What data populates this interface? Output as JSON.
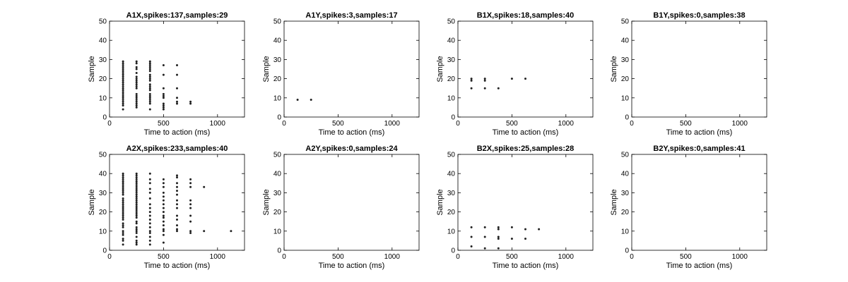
{
  "chart_data": [
    {
      "type": "scatter",
      "title": "A1X,spikes:137,samples:29",
      "xlabel": "Time to action (ms)",
      "ylabel": "Sample",
      "xlim": [
        0,
        1250
      ],
      "ylim": [
        0,
        50
      ],
      "xticks": [
        "0",
        "500",
        "1000"
      ],
      "yticks": [
        "0",
        "10",
        "20",
        "30",
        "40",
        "50"
      ],
      "columns": [
        {
          "x": 125,
          "y": [
            4,
            6,
            7,
            8,
            9,
            10,
            11,
            12,
            13,
            14,
            15,
            16,
            17,
            18,
            19,
            20,
            21,
            22,
            23,
            24,
            25,
            26,
            27,
            28,
            29
          ]
        },
        {
          "x": 250,
          "y": [
            5,
            6,
            7,
            8,
            9,
            10,
            11,
            12,
            15,
            16,
            17,
            18,
            19,
            20,
            21,
            23,
            25,
            26,
            28,
            29
          ]
        },
        {
          "x": 375,
          "y": [
            4,
            7,
            8,
            9,
            10,
            11,
            12,
            14,
            15,
            16,
            17,
            19,
            20,
            21,
            22,
            24,
            25,
            26,
            27,
            28,
            29
          ]
        },
        {
          "x": 500,
          "y": [
            4,
            5,
            6,
            7,
            10,
            11,
            12,
            15,
            22,
            27
          ]
        },
        {
          "x": 625,
          "y": [
            7,
            8,
            10,
            15,
            22,
            27
          ]
        },
        {
          "x": 750,
          "y": [
            7,
            8
          ]
        }
      ]
    },
    {
      "type": "scatter",
      "title": "A1Y,spikes:3,samples:17",
      "xlabel": "Time to action (ms)",
      "ylabel": "Sample",
      "xlim": [
        0,
        1250
      ],
      "ylim": [
        0,
        50
      ],
      "xticks": [
        "0",
        "500",
        "1000"
      ],
      "yticks": [
        "0",
        "10",
        "20",
        "30",
        "40",
        "50"
      ],
      "columns": [
        {
          "x": 125,
          "y": [
            9
          ]
        },
        {
          "x": 250,
          "y": [
            9
          ]
        }
      ]
    },
    {
      "type": "scatter",
      "title": "B1X,spikes:18,samples:40",
      "xlabel": "Time to action (ms)",
      "ylabel": "Sample",
      "xlim": [
        0,
        1250
      ],
      "ylim": [
        0,
        50
      ],
      "xticks": [
        "0",
        "500",
        "1000"
      ],
      "yticks": [
        "0",
        "10",
        "20",
        "30",
        "40",
        "50"
      ],
      "columns": [
        {
          "x": 125,
          "y": [
            15,
            19,
            20
          ]
        },
        {
          "x": 250,
          "y": [
            15,
            19,
            20
          ]
        },
        {
          "x": 375,
          "y": [
            15
          ]
        },
        {
          "x": 500,
          "y": [
            20
          ]
        },
        {
          "x": 625,
          "y": [
            20
          ]
        }
      ]
    },
    {
      "type": "scatter",
      "title": "B1Y,spikes:0,samples:38",
      "xlabel": "Time to action (ms)",
      "ylabel": "Sample",
      "xlim": [
        0,
        1250
      ],
      "ylim": [
        0,
        50
      ],
      "xticks": [
        "0",
        "500",
        "1000"
      ],
      "yticks": [
        "0",
        "10",
        "20",
        "30",
        "40",
        "50"
      ],
      "columns": []
    },
    {
      "type": "scatter",
      "title": "A2X,spikes:233,samples:40",
      "xlabel": "Time to action (ms)",
      "ylabel": "Sample",
      "xlim": [
        0,
        1250
      ],
      "ylim": [
        0,
        50
      ],
      "xticks": [
        "0",
        "500",
        "1000"
      ],
      "yticks": [
        "0",
        "10",
        "20",
        "30",
        "40",
        "50"
      ],
      "columns": [
        {
          "x": 125,
          "y": [
            3,
            5,
            6,
            8,
            9,
            10,
            12,
            13,
            14,
            16,
            17,
            18,
            19,
            20,
            21,
            22,
            23,
            24,
            25,
            26,
            27,
            29,
            30,
            31,
            32,
            33,
            34,
            35,
            36,
            37,
            38,
            39,
            40
          ]
        },
        {
          "x": 250,
          "y": [
            3,
            4,
            5,
            7,
            9,
            10,
            11,
            12,
            14,
            15,
            17,
            18,
            19,
            20,
            21,
            22,
            23,
            24,
            25,
            26,
            27,
            28,
            29,
            30,
            31,
            32,
            33,
            34,
            35,
            36,
            37,
            38,
            39,
            40
          ]
        },
        {
          "x": 375,
          "y": [
            3,
            5,
            7,
            9,
            10,
            12,
            14,
            16,
            18,
            20,
            22,
            24,
            27,
            30,
            32,
            35,
            37,
            40
          ]
        },
        {
          "x": 500,
          "y": [
            4,
            8,
            10,
            11,
            13,
            15,
            17,
            18,
            20,
            22,
            24,
            26,
            28,
            30,
            33,
            35,
            37
          ]
        },
        {
          "x": 625,
          "y": [
            10,
            11,
            13,
            16,
            18,
            22,
            24,
            26,
            29,
            31,
            33,
            35,
            38,
            39
          ]
        },
        {
          "x": 750,
          "y": [
            9,
            10,
            15,
            18,
            22,
            24,
            26,
            33,
            35,
            37
          ]
        },
        {
          "x": 875,
          "y": [
            10,
            33
          ]
        },
        {
          "x": 1125,
          "y": [
            10
          ]
        }
      ]
    },
    {
      "type": "scatter",
      "title": "A2Y,spikes:0,samples:24",
      "xlabel": "Time to action (ms)",
      "ylabel": "Sample",
      "xlim": [
        0,
        1250
      ],
      "ylim": [
        0,
        50
      ],
      "xticks": [
        "0",
        "500",
        "1000"
      ],
      "yticks": [
        "0",
        "10",
        "20",
        "30",
        "40",
        "50"
      ],
      "columns": []
    },
    {
      "type": "scatter",
      "title": "B2X,spikes:25,samples:28",
      "xlabel": "Time to action (ms)",
      "ylabel": "Sample",
      "xlim": [
        0,
        1250
      ],
      "ylim": [
        0,
        50
      ],
      "xticks": [
        "0",
        "500",
        "1000"
      ],
      "yticks": [
        "0",
        "10",
        "20",
        "30",
        "40",
        "50"
      ],
      "columns": [
        {
          "x": 125,
          "y": [
            2,
            7,
            12
          ]
        },
        {
          "x": 250,
          "y": [
            1,
            7,
            12
          ]
        },
        {
          "x": 375,
          "y": [
            1,
            6,
            7,
            11,
            12
          ]
        },
        {
          "x": 500,
          "y": [
            6,
            12
          ]
        },
        {
          "x": 625,
          "y": [
            6,
            11
          ]
        },
        {
          "x": 750,
          "y": [
            11
          ]
        }
      ]
    },
    {
      "type": "scatter",
      "title": "B2Y,spikes:0,samples:41",
      "xlabel": "Time to action (ms)",
      "ylabel": "Sample",
      "xlim": [
        0,
        1250
      ],
      "ylim": [
        0,
        50
      ],
      "xticks": [
        "0",
        "500",
        "1000"
      ],
      "yticks": [
        "0",
        "10",
        "20",
        "30",
        "40",
        "50"
      ],
      "columns": []
    }
  ]
}
